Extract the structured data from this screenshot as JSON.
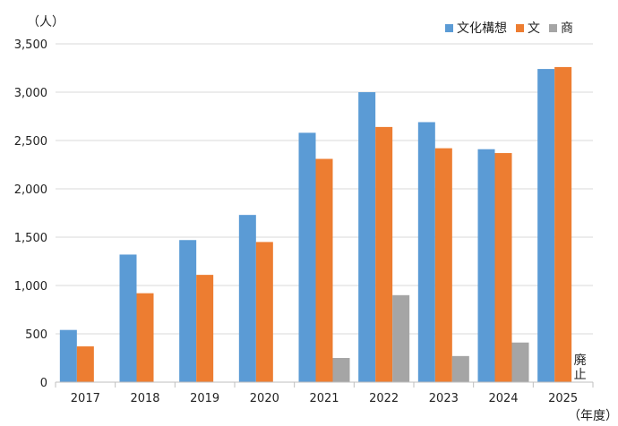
{
  "chart_data": {
    "type": "bar",
    "y_unit": "（人）",
    "x_unit": "（年度）",
    "categories": [
      "2017",
      "2018",
      "2019",
      "2020",
      "2021",
      "2022",
      "2023",
      "2024",
      "2025"
    ],
    "series": [
      {
        "name": "文化構想",
        "color": "#5B9BD5",
        "values": [
          540,
          1320,
          1470,
          1730,
          2580,
          3000,
          2690,
          2410,
          3240
        ]
      },
      {
        "name": "文",
        "color": "#ED7D31",
        "values": [
          370,
          920,
          1110,
          1450,
          2310,
          2640,
          2420,
          2370,
          3260
        ]
      },
      {
        "name": "商",
        "color": "#A5A5A5",
        "values": [
          null,
          null,
          null,
          null,
          250,
          900,
          270,
          410,
          null
        ]
      }
    ],
    "yticks": [
      0,
      500,
      1000,
      1500,
      2000,
      2500,
      3000,
      3500
    ],
    "ytick_labels": [
      "0",
      "500",
      "1,000",
      "1,500",
      "2,000",
      "2,500",
      "3,000",
      "3,500"
    ],
    "ylim": [
      0,
      3500
    ],
    "grid": true,
    "legend_position": "top-right",
    "annotation": {
      "category": "2025",
      "text": "廃止"
    }
  }
}
